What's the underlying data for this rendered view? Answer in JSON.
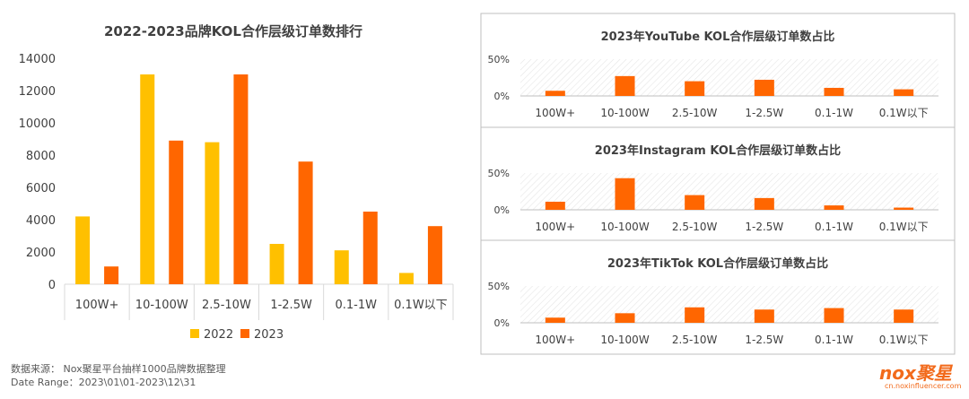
{
  "colors": {
    "series_2022": "#FFC000",
    "series_2023": "#FF6600",
    "axis_text": "#404040",
    "grid": "#D9D9D9",
    "panel_border": "#BFBFBF",
    "logo": "#F26A1B"
  },
  "chart_data": [
    {
      "type": "bar",
      "title": "2022-2023品牌KOL合作层级订单数排行",
      "categories": [
        "100W+",
        "10-100W",
        "2.5-10W",
        "1-2.5W",
        "0.1-1W",
        "0.1W以下"
      ],
      "series": [
        {
          "name": "2022",
          "values": [
            4200,
            13000,
            8800,
            2500,
            2100,
            700
          ]
        },
        {
          "name": "2023",
          "values": [
            1100,
            8900,
            13000,
            7600,
            4500,
            3600
          ]
        }
      ],
      "yticks": [
        "0",
        "2000",
        "4000",
        "6000",
        "8000",
        "10000",
        "12000",
        "14000"
      ],
      "ylim": [
        0,
        14000
      ],
      "grid": false,
      "legend": "bottom"
    },
    {
      "type": "bar",
      "title": "2023年YouTube KOL合作层级订单数占比",
      "categories": [
        "100W+",
        "10-100W",
        "2.5-10W",
        "1-2.5W",
        "0.1-1W",
        "0.1W以下"
      ],
      "values": [
        7,
        27,
        20,
        22,
        11,
        9
      ],
      "yticks": [
        "0%",
        "50%"
      ],
      "ylim": [
        0,
        50
      ]
    },
    {
      "type": "bar",
      "title": "2023年Instagram KOL合作层级订单数占比",
      "categories": [
        "100W+",
        "10-100W",
        "2.5-10W",
        "1-2.5W",
        "0.1-1W",
        "0.1W以下"
      ],
      "values": [
        11,
        43,
        20,
        16,
        6,
        3
      ],
      "yticks": [
        "0%",
        "50%"
      ],
      "ylim": [
        0,
        50
      ]
    },
    {
      "type": "bar",
      "title": "2023年TikTok KOL合作层级订单数占比",
      "categories": [
        "100W+",
        "10-100W",
        "2.5-10W",
        "1-2.5W",
        "0.1-1W",
        "0.1W以下"
      ],
      "values": [
        7,
        13,
        21,
        18,
        20,
        18
      ],
      "yticks": [
        "0%",
        "50%"
      ],
      "ylim": [
        0,
        50
      ]
    }
  ],
  "source": {
    "line1": "数据来源：  Nox聚星平台抽样1000品牌数据整理",
    "line2": "Date Range：2023\\01\\01-2023\\12\\31"
  },
  "logo": {
    "name": "nox聚星",
    "url": "cn.noxinfluencer.com"
  }
}
